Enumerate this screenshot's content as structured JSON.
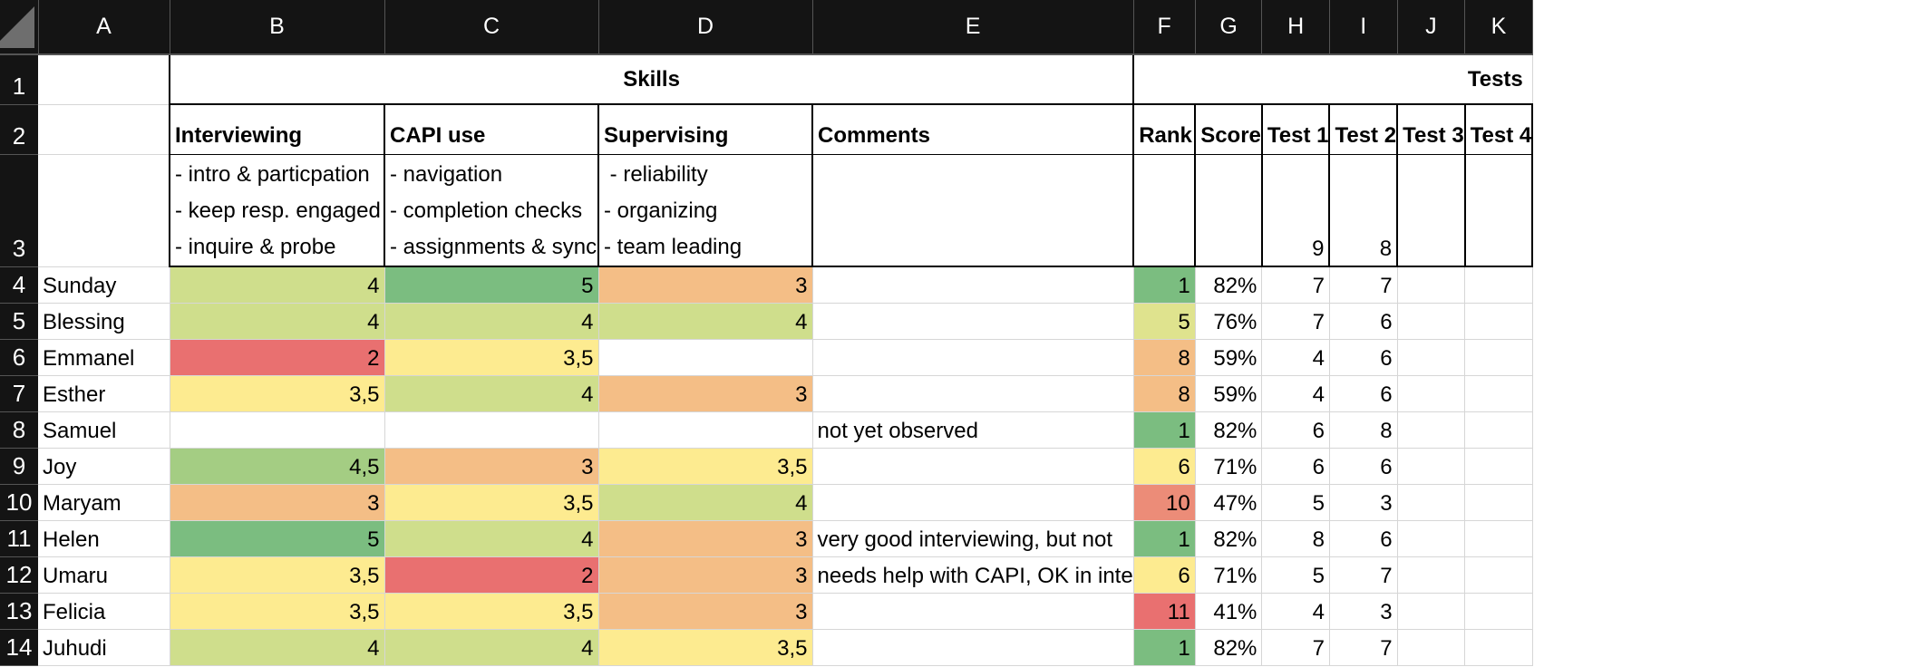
{
  "columns": [
    "A",
    "B",
    "C",
    "D",
    "E",
    "F",
    "G",
    "H",
    "I",
    "J",
    "K"
  ],
  "row1": {
    "skills_title": "Skills",
    "tests_title": "Tests"
  },
  "row2": {
    "interviewing": "Interviewing",
    "capi": "CAPI use",
    "supervising": "Supervising",
    "comments": "Comments",
    "rank": "Rank",
    "score": "Score",
    "test1": "Test 1",
    "test2": "Test 2",
    "test3": "Test 3",
    "test4": "Test 4"
  },
  "row3": {
    "interviewing_lines": [
      "- intro & particpation",
      "- keep resp. engaged",
      "- inquire & probe"
    ],
    "capi_lines": [
      "- navigation",
      "- completion checks",
      "- assignments & sync"
    ],
    "supervising_lines": [
      " - reliability",
      "- organizing",
      "- team leading"
    ],
    "test1_max": "9",
    "test2_max": "8"
  },
  "rows": [
    {
      "num": "4",
      "name": "Sunday",
      "b": "4",
      "c": "5",
      "d": "3",
      "e": "",
      "rank": "1",
      "score": "82%",
      "t1": "7",
      "t2": "7"
    },
    {
      "num": "5",
      "name": "Blessing",
      "b": "4",
      "c": "4",
      "d": "4",
      "e": "",
      "rank": "5",
      "score": "76%",
      "t1": "7",
      "t2": "6"
    },
    {
      "num": "6",
      "name": "Emmanel",
      "b": "2",
      "c": "3,5",
      "d": "",
      "e": "",
      "rank": "8",
      "score": "59%",
      "t1": "4",
      "t2": "6"
    },
    {
      "num": "7",
      "name": "Esther",
      "b": "3,5",
      "c": "4",
      "d": "3",
      "e": "",
      "rank": "8",
      "score": "59%",
      "t1": "4",
      "t2": "6"
    },
    {
      "num": "8",
      "name": "Samuel",
      "b": "",
      "c": "",
      "d": "",
      "e": "not yet observed",
      "rank": "1",
      "score": "82%",
      "t1": "6",
      "t2": "8"
    },
    {
      "num": "9",
      "name": "Joy",
      "b": "4,5",
      "c": "3",
      "d": "3,5",
      "e": "",
      "rank": "6",
      "score": "71%",
      "t1": "6",
      "t2": "6"
    },
    {
      "num": "10",
      "name": "Maryam",
      "b": "3",
      "c": "3,5",
      "d": "4",
      "e": "",
      "rank": "10",
      "score": "47%",
      "t1": "5",
      "t2": "3"
    },
    {
      "num": "11",
      "name": "Helen",
      "b": "5",
      "c": "4",
      "d": "3",
      "e": "very good interviewing, but not",
      "rank": "1",
      "score": "82%",
      "t1": "8",
      "t2": "6"
    },
    {
      "num": "12",
      "name": "Umaru",
      "b": "3,5",
      "c": "2",
      "d": "3",
      "e": "needs help with CAPI, OK in inte",
      "rank": "6",
      "score": "71%",
      "t1": "5",
      "t2": "7"
    },
    {
      "num": "13",
      "name": "Felicia",
      "b": "3,5",
      "c": "3,5",
      "d": "3",
      "e": "",
      "rank": "11",
      "score": "41%",
      "t1": "4",
      "t2": "3"
    },
    {
      "num": "14",
      "name": "Juhudi",
      "b": "4",
      "c": "4",
      "d": "3,5",
      "e": "",
      "rank": "1",
      "score": "82%",
      "t1": "7",
      "t2": "7"
    }
  ],
  "colors": {
    "skill_5": "#7bbd80",
    "skill_4_5": "#a4cd83",
    "skill_4": "#cfde8c",
    "skill_3_5": "#fdeb90",
    "skill_3": "#f4be86",
    "skill_2": "#e97070",
    "rank_1": "#7bbd80",
    "rank_5": "#dfe38e",
    "rank_6": "#fdeb90",
    "rank_8": "#f4be86",
    "rank_10": "#ec8c78",
    "rank_11": "#e97070"
  }
}
